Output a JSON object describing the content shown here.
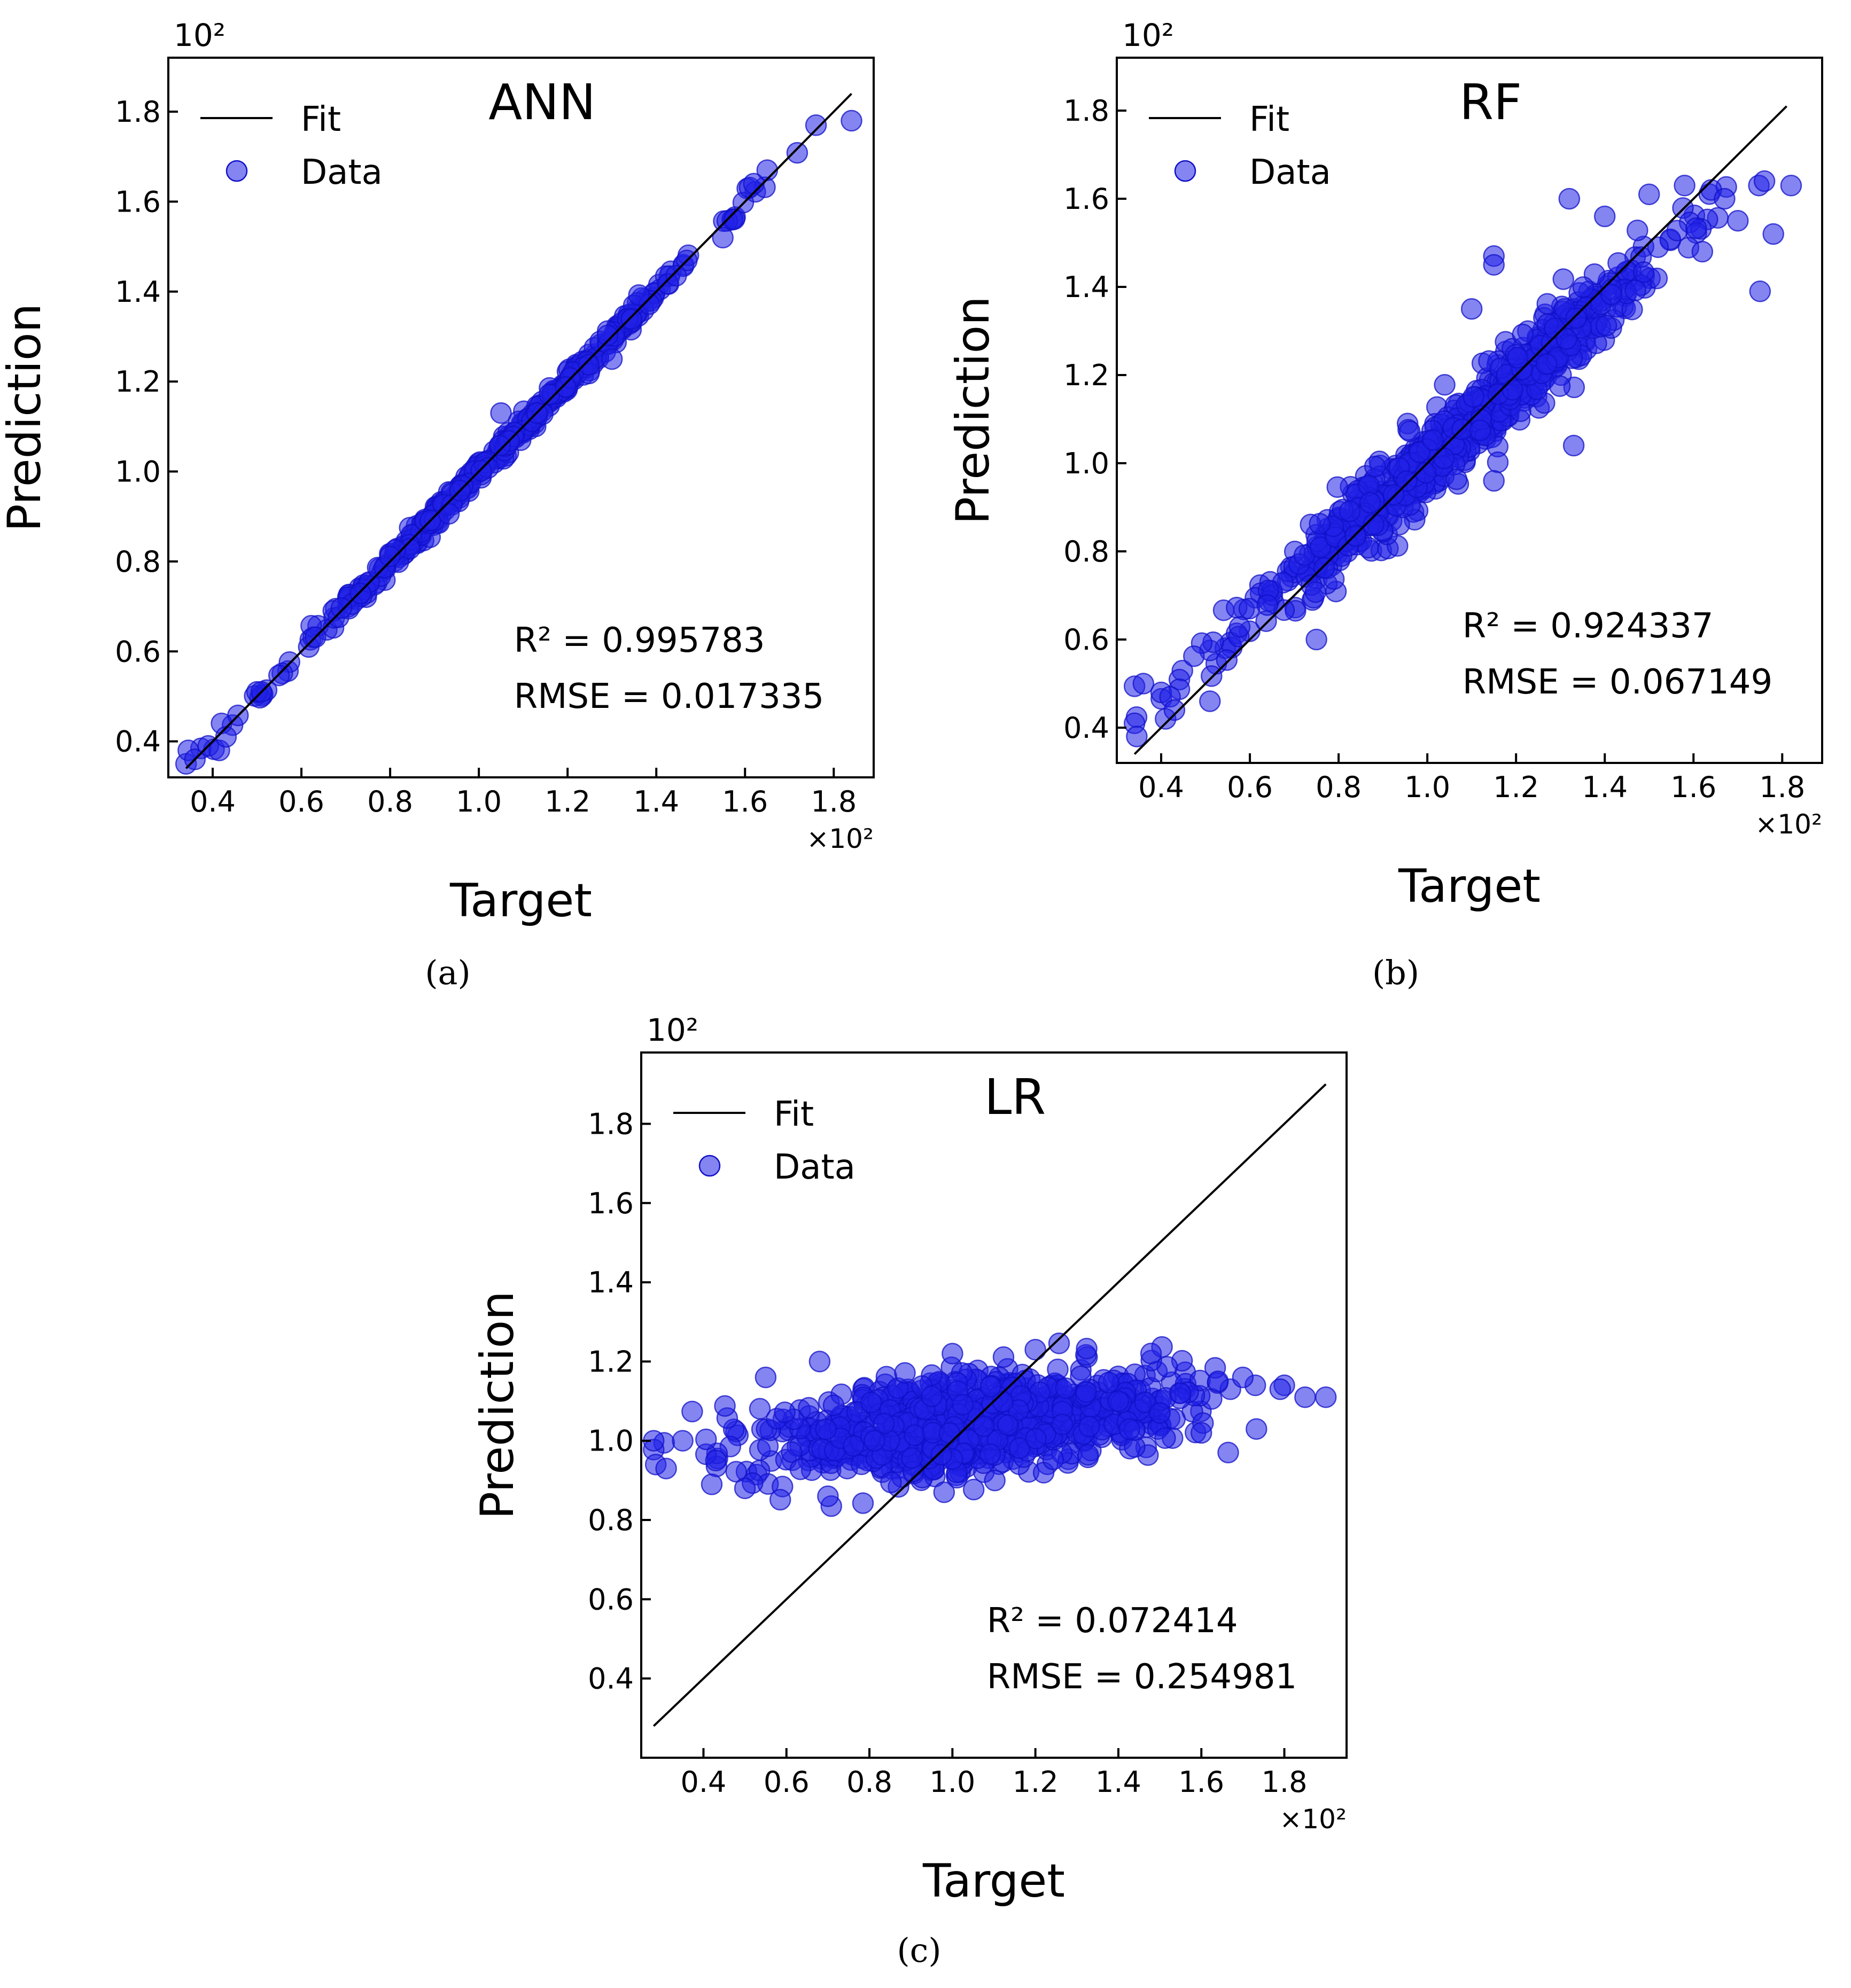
{
  "captions": [
    "(a)",
    "(b)",
    "(c)"
  ],
  "colors": {
    "point": "#2020e8",
    "point_edge": "#1010c8",
    "fit": "#000000",
    "axis": "#000000"
  },
  "legend": {
    "fit_label": "Fit",
    "data_label": "Data"
  },
  "chart_data": [
    {
      "type": "scatter",
      "id": "a",
      "title": "ANN",
      "xlabel": "Target",
      "ylabel": "Prediction",
      "x_multiplier": "×10²",
      "y_multiplier": "10²",
      "xlim": [
        0.3,
        1.89
      ],
      "ylim": [
        0.32,
        1.92
      ],
      "xticks": [
        0.4,
        0.6,
        0.8,
        1.0,
        1.2,
        1.4,
        1.6,
        1.8
      ],
      "yticks": [
        0.4,
        0.6,
        0.8,
        1.0,
        1.2,
        1.4,
        1.6,
        1.8
      ],
      "fit_line": [
        [
          0.34,
          0.34
        ],
        [
          1.84,
          1.84
        ]
      ],
      "annotation": {
        "r2_label": "R² = 0.995783",
        "rmse_label": "RMSE = 0.017335"
      },
      "series": [
        {
          "name": "Data",
          "generator": {
            "seed": 11,
            "count": 420,
            "x_mean": 1.05,
            "x_sd": 0.24,
            "x_min": 0.34,
            "x_max": 1.84,
            "slope": 1.0,
            "intercept": 0.0,
            "noise": 0.012
          }
        }
      ],
      "points": [
        [
          0.34,
          0.35
        ],
        [
          0.345,
          0.38
        ],
        [
          0.36,
          0.36
        ],
        [
          0.39,
          0.39
        ],
        [
          0.415,
          0.38
        ],
        [
          0.42,
          0.44
        ],
        [
          0.43,
          0.41
        ],
        [
          0.5,
          0.51
        ],
        [
          0.51,
          0.51
        ],
        [
          1.76,
          1.77
        ],
        [
          1.84,
          1.78
        ],
        [
          1.55,
          1.52
        ],
        [
          1.65,
          1.67
        ],
        [
          1.62,
          1.64
        ],
        [
          1.05,
          1.13
        ],
        [
          1.3,
          1.25
        ]
      ]
    },
    {
      "type": "scatter",
      "id": "b",
      "title": "RF",
      "xlabel": "Target",
      "ylabel": "Prediction",
      "x_multiplier": "×10²",
      "y_multiplier": "10²",
      "xlim": [
        0.3,
        1.89
      ],
      "ylim": [
        0.32,
        1.92
      ],
      "xticks": [
        0.4,
        0.6,
        0.8,
        1.0,
        1.2,
        1.4,
        1.6,
        1.8
      ],
      "yticks": [
        0.4,
        0.6,
        0.8,
        1.0,
        1.2,
        1.4,
        1.6,
        1.8
      ],
      "fit_line": [
        [
          0.34,
          0.34
        ],
        [
          1.81,
          1.81
        ]
      ],
      "annotation": {
        "r2_label": "R² = 0.924337",
        "rmse_label": "RMSE = 0.067149"
      },
      "series": [
        {
          "name": "Data",
          "generator": {
            "seed": 23,
            "count": 700,
            "x_mean": 1.05,
            "x_sd": 0.24,
            "x_min": 0.34,
            "x_max": 1.82,
            "slope": 0.88,
            "intercept": 0.125,
            "noise": 0.045
          }
        }
      ],
      "points": [
        [
          0.34,
          0.41
        ],
        [
          0.345,
          0.38
        ],
        [
          0.36,
          0.5
        ],
        [
          0.4,
          0.48
        ],
        [
          0.41,
          0.42
        ],
        [
          0.42,
          0.47
        ],
        [
          0.43,
          0.44
        ],
        [
          0.51,
          0.46
        ],
        [
          1.64,
          1.62
        ],
        [
          1.67,
          1.6
        ],
        [
          1.7,
          1.55
        ],
        [
          1.76,
          1.64
        ],
        [
          1.78,
          1.52
        ],
        [
          1.82,
          1.63
        ],
        [
          1.75,
          1.39
        ],
        [
          1.32,
          1.6
        ],
        [
          1.5,
          1.61
        ],
        [
          1.58,
          1.63
        ],
        [
          1.15,
          1.47
        ],
        [
          1.33,
          1.04
        ],
        [
          1.15,
          0.96
        ],
        [
          0.75,
          0.6
        ],
        [
          1.1,
          1.35
        ],
        [
          1.4,
          1.56
        ],
        [
          1.15,
          1.45
        ],
        [
          1.52,
          1.49
        ],
        [
          1.62,
          1.48
        ]
      ]
    },
    {
      "type": "scatter",
      "id": "c",
      "title": "LR",
      "xlabel": "Target",
      "ylabel": "Prediction",
      "x_multiplier": "×10²",
      "y_multiplier": "10²",
      "xlim": [
        0.25,
        1.95
      ],
      "ylim": [
        0.2,
        1.98
      ],
      "xticks": [
        0.4,
        0.6,
        0.8,
        1.0,
        1.2,
        1.4,
        1.6,
        1.8
      ],
      "yticks": [
        0.4,
        0.6,
        0.8,
        1.0,
        1.2,
        1.4,
        1.6,
        1.8
      ],
      "fit_line": [
        [
          0.28,
          0.28
        ],
        [
          1.9,
          1.9
        ]
      ],
      "annotation": {
        "r2_label": "R² = 0.072414",
        "rmse_label": "RMSE = 0.254981"
      },
      "series": [
        {
          "name": "Data",
          "generator": {
            "seed": 37,
            "count": 900,
            "x_mean": 1.05,
            "x_sd": 0.24,
            "x_min": 0.28,
            "x_max": 1.9,
            "slope": 0.1,
            "intercept": 0.94,
            "noise": 0.06
          }
        }
      ],
      "points": [
        [
          0.28,
          1.0
        ],
        [
          0.285,
          0.94
        ],
        [
          0.31,
          0.93
        ],
        [
          0.35,
          1.0
        ],
        [
          0.42,
          0.89
        ],
        [
          0.43,
          0.95
        ],
        [
          1.9,
          1.11
        ],
        [
          1.85,
          1.11
        ],
        [
          1.8,
          1.14
        ],
        [
          1.79,
          1.13
        ],
        [
          1.73,
          1.14
        ],
        [
          1.67,
          1.13
        ],
        [
          1.64,
          1.15
        ],
        [
          1.6,
          1.02
        ],
        [
          1.7,
          1.16
        ],
        [
          1.4,
          1.1
        ],
        [
          1.5,
          1.07
        ],
        [
          1.55,
          1.12
        ],
        [
          0.7,
          0.86
        ],
        [
          0.98,
          0.87
        ],
        [
          0.5,
          0.88
        ],
        [
          0.55,
          1.16
        ],
        [
          0.68,
          1.2
        ],
        [
          1.2,
          1.23
        ],
        [
          1.0,
          1.22
        ]
      ]
    }
  ]
}
